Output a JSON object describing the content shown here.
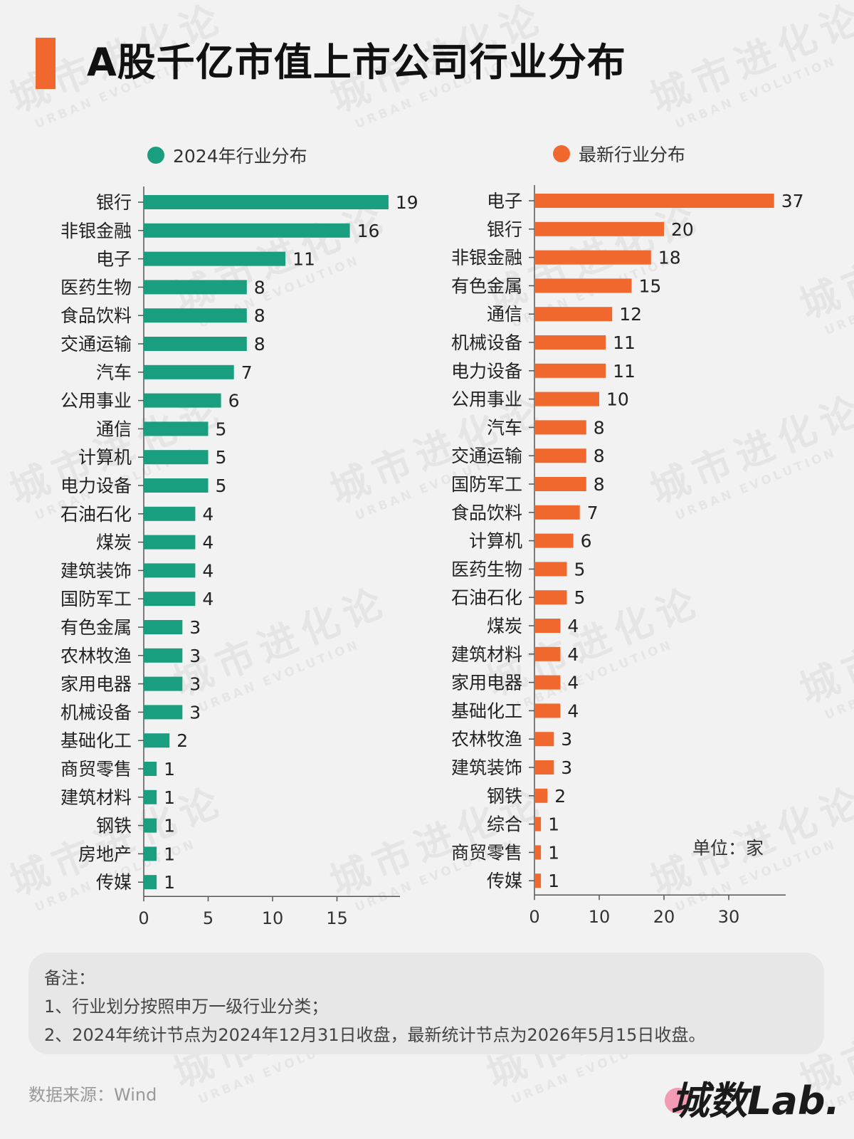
{
  "header": {
    "title": "A股千亿市值上市公司行业分布"
  },
  "watermark": {
    "cn": "城市进化论",
    "en": "URBAN EVOLUTION"
  },
  "legend": {
    "left_label": "2024年行业分布",
    "right_label": "最新行业分布"
  },
  "colors": {
    "left": "#1a9e80",
    "right": "#f0682d",
    "accent": "#f0682d",
    "axis": "#555555"
  },
  "unit_label": "单位：家",
  "notes": {
    "heading": "备注：",
    "line1": "1、行业划分按照申万一级行业分类；",
    "line2": "2、2024年统计节点为2024年12月31日收盘，最新统计节点为2026年5月15日收盘。"
  },
  "source": "数据来源：Wind",
  "logo": {
    "text": "城数Lab."
  },
  "chart_data": [
    {
      "type": "bar",
      "orientation": "horizontal",
      "name": "2024年行业分布",
      "categories": [
        "银行",
        "非银金融",
        "电子",
        "医药生物",
        "食品饮料",
        "交通运输",
        "汽车",
        "公用事业",
        "通信",
        "计算机",
        "电力设备",
        "石油石化",
        "煤炭",
        "建筑装饰",
        "国防军工",
        "有色金属",
        "农林牧渔",
        "家用电器",
        "机械设备",
        "基础化工",
        "商贸零售",
        "建筑材料",
        "钢铁",
        "房地产",
        "传媒"
      ],
      "values": [
        19,
        16,
        11,
        8,
        8,
        8,
        7,
        6,
        5,
        5,
        5,
        4,
        4,
        4,
        4,
        3,
        3,
        3,
        3,
        2,
        1,
        1,
        1,
        1,
        1
      ],
      "xlim": [
        0,
        20
      ],
      "xticks": [
        0,
        5,
        10,
        15
      ]
    },
    {
      "type": "bar",
      "orientation": "horizontal",
      "name": "最新行业分布",
      "categories": [
        "电子",
        "银行",
        "非银金融",
        "有色金属",
        "通信",
        "机械设备",
        "电力设备",
        "公用事业",
        "汽车",
        "交通运输",
        "国防军工",
        "食品饮料",
        "计算机",
        "医药生物",
        "石油石化",
        "煤炭",
        "建筑材料",
        "家用电器",
        "基础化工",
        "农林牧渔",
        "建筑装饰",
        "钢铁",
        "综合",
        "商贸零售",
        "传媒"
      ],
      "values": [
        37,
        20,
        18,
        15,
        12,
        11,
        11,
        10,
        8,
        8,
        8,
        7,
        6,
        5,
        5,
        4,
        4,
        4,
        4,
        3,
        3,
        2,
        1,
        1,
        1
      ],
      "xlim": [
        0,
        39
      ],
      "xticks": [
        0,
        10,
        20,
        30
      ]
    }
  ]
}
